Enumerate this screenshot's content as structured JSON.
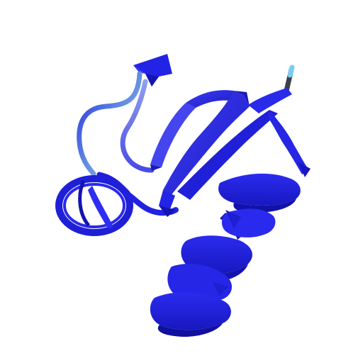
{
  "scene": {
    "subject": "protein-ribbon",
    "background_color": "#ffffff",
    "colors": {
      "ribbon_main": "#2323e6",
      "ribbon_dark": "#1414b4",
      "ribbon_light": "#4a4af0",
      "coil_light": "#4f7fe0",
      "coil_pale": "#a9b4ec",
      "terminus_gray": "#444a55",
      "terminus_tip": "#7fd0f0"
    }
  }
}
